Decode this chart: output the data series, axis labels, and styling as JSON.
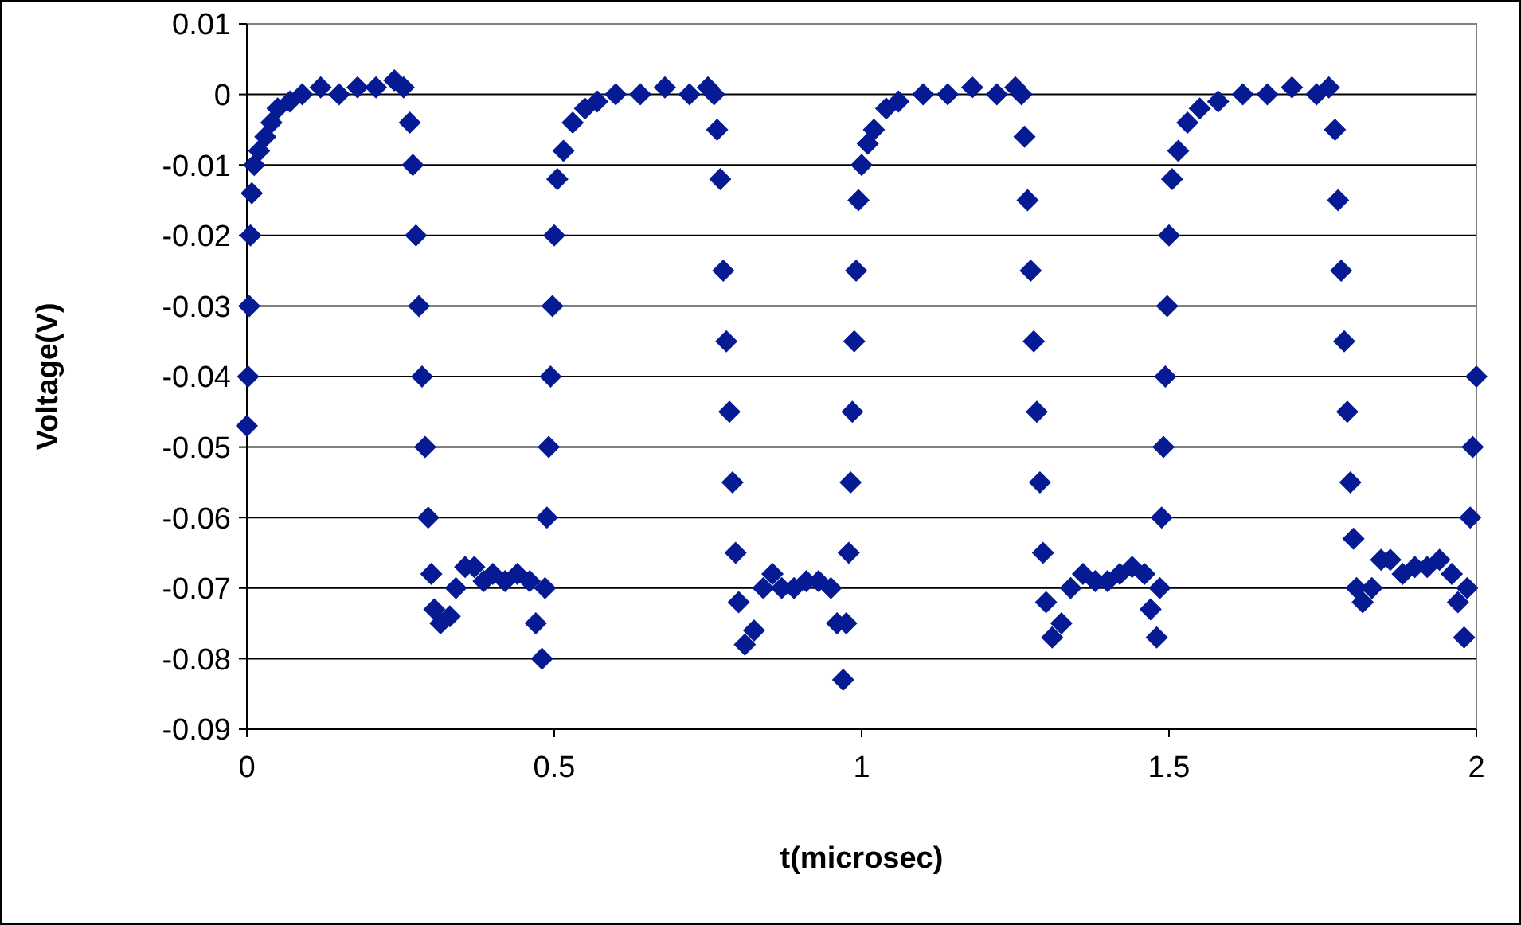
{
  "chart_data": {
    "type": "scatter",
    "xlabel": "t(microsec)",
    "ylabel": "Voltage(V)",
    "xlim": [
      0,
      2
    ],
    "xticks": [
      0,
      0.5,
      1,
      1.5,
      2
    ],
    "ylim": [
      -0.09,
      0.01
    ],
    "yticks": [
      -0.09,
      -0.08,
      -0.07,
      -0.06,
      -0.05,
      -0.04,
      -0.03,
      -0.02,
      -0.01,
      0,
      0.01
    ],
    "grid": "y",
    "marker": "diamond",
    "series": [
      {
        "color": "#061a93",
        "x": [
          0,
          0.002,
          0.004,
          0.006,
          0.008,
          0.012,
          0.02,
          0.03,
          0.04,
          0.05,
          0.07,
          0.09,
          0.12,
          0.15,
          0.18,
          0.21,
          0.24,
          0.255,
          0.265,
          0.27,
          0.275,
          0.28,
          0.285,
          0.29,
          0.295,
          0.3,
          0.305,
          0.315,
          0.33,
          0.34,
          0.355,
          0.37,
          0.385,
          0.4,
          0.42,
          0.44,
          0.46,
          0.47,
          0.48,
          0.485,
          0.488,
          0.491,
          0.494,
          0.497,
          0.5,
          0.505,
          0.515,
          0.53,
          0.55,
          0.57,
          0.6,
          0.64,
          0.68,
          0.72,
          0.75,
          0.76,
          0.765,
          0.77,
          0.775,
          0.78,
          0.785,
          0.79,
          0.795,
          0.8,
          0.81,
          0.825,
          0.84,
          0.855,
          0.87,
          0.89,
          0.91,
          0.93,
          0.95,
          0.96,
          0.97,
          0.975,
          0.979,
          0.982,
          0.985,
          0.988,
          0.991,
          0.995,
          1.0,
          1.01,
          1.02,
          1.04,
          1.06,
          1.1,
          1.14,
          1.18,
          1.22,
          1.25,
          1.26,
          1.265,
          1.27,
          1.275,
          1.28,
          1.285,
          1.29,
          1.295,
          1.3,
          1.31,
          1.325,
          1.34,
          1.36,
          1.38,
          1.4,
          1.42,
          1.44,
          1.46,
          1.47,
          1.48,
          1.485,
          1.488,
          1.491,
          1.494,
          1.497,
          1.5,
          1.505,
          1.515,
          1.53,
          1.55,
          1.58,
          1.62,
          1.66,
          1.7,
          1.74,
          1.76,
          1.77,
          1.775,
          1.78,
          1.785,
          1.79,
          1.795,
          1.8,
          1.805,
          1.815,
          1.83,
          1.845,
          1.86,
          1.88,
          1.9,
          1.92,
          1.94,
          1.96,
          1.97,
          1.98,
          1.985,
          1.99,
          1.994,
          2.0
        ],
        "values": [
          -0.047,
          -0.04,
          -0.03,
          -0.02,
          -0.014,
          -0.01,
          -0.008,
          -0.006,
          -0.004,
          -0.002,
          -0.001,
          0,
          0.001,
          0,
          0.001,
          0.001,
          0.002,
          0.001,
          -0.004,
          -0.01,
          -0.02,
          -0.03,
          -0.04,
          -0.05,
          -0.06,
          -0.068,
          -0.073,
          -0.075,
          -0.074,
          -0.07,
          -0.067,
          -0.067,
          -0.069,
          -0.068,
          -0.069,
          -0.068,
          -0.069,
          -0.075,
          -0.08,
          -0.07,
          -0.06,
          -0.05,
          -0.04,
          -0.03,
          -0.02,
          -0.012,
          -0.008,
          -0.004,
          -0.002,
          -0.001,
          0,
          0,
          0.001,
          0,
          0.001,
          0,
          -0.005,
          -0.012,
          -0.025,
          -0.035,
          -0.045,
          -0.055,
          -0.065,
          -0.072,
          -0.078,
          -0.076,
          -0.07,
          -0.068,
          -0.07,
          -0.07,
          -0.069,
          -0.069,
          -0.07,
          -0.075,
          -0.083,
          -0.075,
          -0.065,
          -0.055,
          -0.045,
          -0.035,
          -0.025,
          -0.015,
          -0.01,
          -0.007,
          -0.005,
          -0.002,
          -0.001,
          0,
          0,
          0.001,
          0,
          0.001,
          0,
          -0.006,
          -0.015,
          -0.025,
          -0.035,
          -0.045,
          -0.055,
          -0.065,
          -0.072,
          -0.077,
          -0.075,
          -0.07,
          -0.068,
          -0.069,
          -0.069,
          -0.068,
          -0.067,
          -0.068,
          -0.073,
          -0.077,
          -0.07,
          -0.06,
          -0.05,
          -0.04,
          -0.03,
          -0.02,
          -0.012,
          -0.008,
          -0.004,
          -0.002,
          -0.001,
          0,
          0,
          0.001,
          0,
          0.001,
          -0.005,
          -0.015,
          -0.025,
          -0.035,
          -0.045,
          -0.055,
          -0.063,
          -0.07,
          -0.072,
          -0.07,
          -0.066,
          -0.066,
          -0.068,
          -0.067,
          -0.067,
          -0.066,
          -0.068,
          -0.072,
          -0.077,
          -0.07,
          -0.06,
          -0.05,
          -0.04
        ]
      }
    ]
  }
}
